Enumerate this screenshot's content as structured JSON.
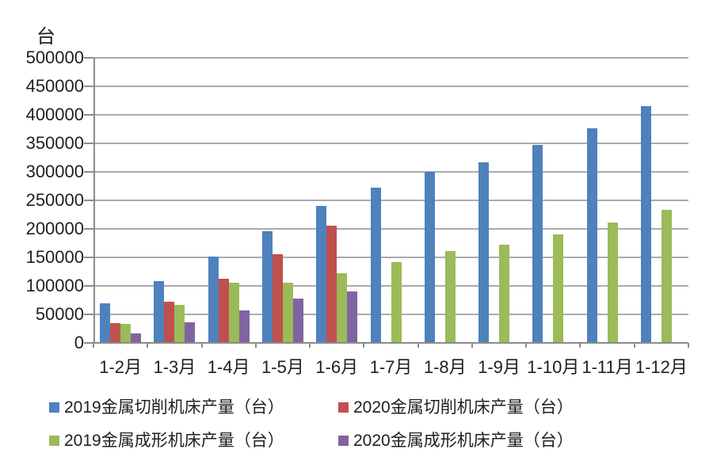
{
  "chart_data": {
    "type": "bar",
    "title": "",
    "y_axis_title": "台",
    "ylim": [
      0,
      500000
    ],
    "y_step": 50000,
    "y_tick_labels": [
      "0",
      "50000",
      "100000",
      "150000",
      "200000",
      "250000",
      "300000",
      "350000",
      "400000",
      "450000",
      "500000"
    ],
    "grid": "horizontal",
    "legend_position": "bottom",
    "categories": [
      "1-2月",
      "1-3月",
      "1-4月",
      "1-5月",
      "1-6月",
      "1-7月",
      "1-8月",
      "1-9月",
      "1-10月",
      "1-11月",
      "1-12月"
    ],
    "series": [
      {
        "name": "2019金属切削机床产量（台）",
        "color": "#4F81BD",
        "values": [
          70000,
          108000,
          152000,
          196000,
          240000,
          272000,
          300000,
          317000,
          347000,
          376000,
          415000
        ]
      },
      {
        "name": "2020金属切削机床产量（台）",
        "color": "#C0504D",
        "values": [
          35000,
          72000,
          113000,
          155000,
          205000,
          null,
          null,
          null,
          null,
          null,
          null
        ]
      },
      {
        "name": "2019金属成形机床产量（台）",
        "color": "#9BBB59",
        "values": [
          33000,
          66000,
          106000,
          105000,
          122000,
          142000,
          161000,
          172000,
          190000,
          211000,
          233000
        ]
      },
      {
        "name": "2020金属成形机床产量（台）",
        "color": "#8064A2",
        "values": [
          17000,
          36000,
          57000,
          78000,
          90000,
          null,
          null,
          null,
          null,
          null,
          null
        ]
      }
    ]
  },
  "colors": {
    "background": "#FFFFFF",
    "gridline": "#ABABAB",
    "axis": "#8C8C8C",
    "text": "#1F1F1F",
    "series_blue": "#4F81BD",
    "series_red": "#C0504D",
    "series_green": "#9BBB59",
    "series_purple": "#8064A2"
  }
}
